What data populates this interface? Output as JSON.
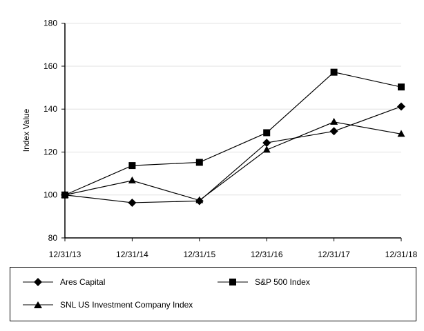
{
  "chart_data": {
    "type": "line",
    "ylabel": "Index Value",
    "xlabel": "",
    "categories": [
      "12/31/13",
      "12/31/14",
      "12/31/15",
      "12/31/16",
      "12/31/17",
      "12/31/18"
    ],
    "ylim": [
      80,
      180
    ],
    "yticks": [
      80,
      100,
      120,
      140,
      160,
      180
    ],
    "grid": true,
    "legend_position": "bottom",
    "series": [
      {
        "name": "Ares Capital",
        "marker": "diamond",
        "values": [
          100,
          96.4,
          97.2,
          124.3,
          129.7,
          141.2
        ]
      },
      {
        "name": "S&P 500 Index",
        "marker": "square",
        "values": [
          100,
          113.7,
          115.2,
          129.0,
          157.2,
          150.3
        ]
      },
      {
        "name": "SNL US Investment Company Index",
        "marker": "triangle",
        "values": [
          100,
          106.7,
          97.5,
          121.0,
          134.0,
          128.4
        ]
      }
    ],
    "colors": {
      "line": "#000000",
      "grid": "#e0e0e0"
    }
  }
}
